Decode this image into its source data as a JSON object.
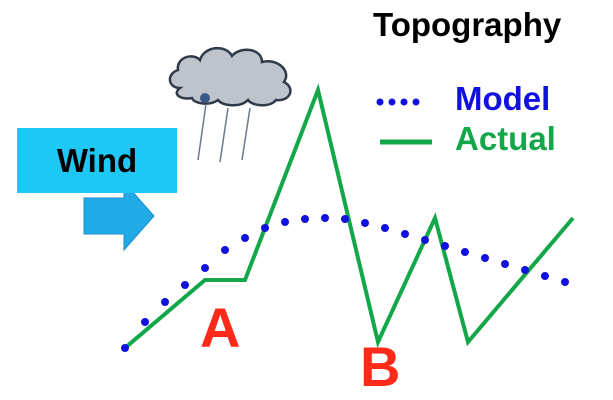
{
  "title": "Topography",
  "legend": {
    "model": {
      "label": "Model",
      "color": "#1010e0"
    },
    "actual": {
      "label": "Actual",
      "color": "#12a84a"
    }
  },
  "wind": {
    "label": "Wind",
    "box_color": "#1ec8f5",
    "arrow_color": "#22a9e8"
  },
  "points": {
    "a_label": "A",
    "b_label": "B",
    "color": "#ff2a1a"
  },
  "icons": {
    "cloud": "rain-cloud-icon",
    "arrow": "wind-arrow-icon"
  },
  "curves": {
    "actual": [
      [
        125,
        348
      ],
      [
        205,
        280
      ],
      [
        245,
        280
      ],
      [
        318,
        90
      ],
      [
        378,
        342
      ],
      [
        435,
        218
      ],
      [
        468,
        342
      ],
      [
        573,
        218
      ]
    ],
    "model": [
      [
        125,
        348
      ],
      [
        145,
        322
      ],
      [
        165,
        302
      ],
      [
        185,
        285
      ],
      [
        205,
        268
      ],
      [
        225,
        250
      ],
      [
        245,
        238
      ],
      [
        265,
        228
      ],
      [
        285,
        222
      ],
      [
        305,
        219
      ],
      [
        325,
        218
      ],
      [
        345,
        219
      ],
      [
        365,
        223
      ],
      [
        385,
        228
      ],
      [
        405,
        234
      ],
      [
        425,
        240
      ],
      [
        445,
        246
      ],
      [
        465,
        252
      ],
      [
        485,
        258
      ],
      [
        505,
        264
      ],
      [
        525,
        270
      ],
      [
        545,
        276
      ],
      [
        565,
        282
      ]
    ]
  }
}
